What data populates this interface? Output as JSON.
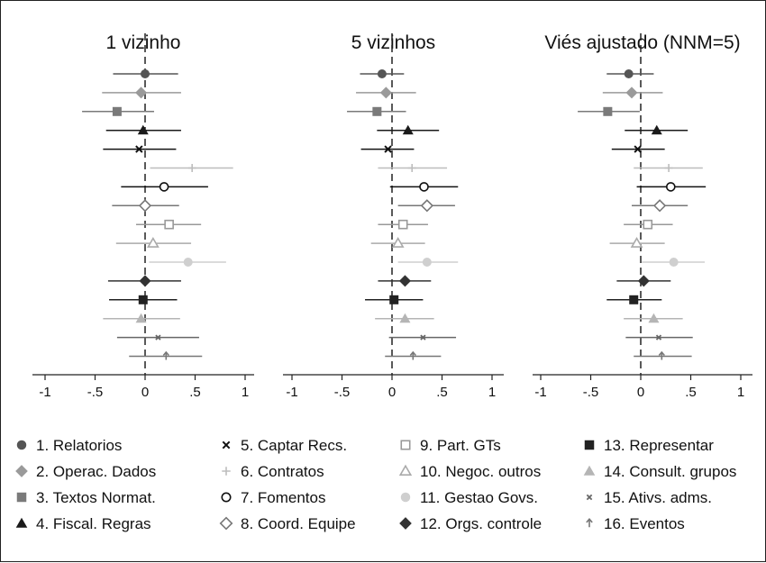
{
  "chart_data": [
    {
      "type": "scatter",
      "subtype": "coefficient-plot",
      "title": "1 vizinho",
      "xlim": [
        -1.1,
        1.1
      ],
      "xticks": [
        -1,
        -0.5,
        0,
        0.5,
        1
      ],
      "xtick_labels": [
        "-1",
        "-.5",
        "0",
        ".5",
        "1"
      ],
      "reference_line": 0,
      "points": [
        {
          "series": 1,
          "est": 0.0,
          "lo": -0.32,
          "hi": 0.33
        },
        {
          "series": 2,
          "est": -0.04,
          "lo": -0.43,
          "hi": 0.36
        },
        {
          "series": 3,
          "est": -0.28,
          "lo": -0.63,
          "hi": 0.09
        },
        {
          "series": 4,
          "est": -0.02,
          "lo": -0.39,
          "hi": 0.36
        },
        {
          "series": 5,
          "est": -0.06,
          "lo": -0.42,
          "hi": 0.31
        },
        {
          "series": 6,
          "est": 0.47,
          "lo": 0.05,
          "hi": 0.88
        },
        {
          "series": 7,
          "est": 0.19,
          "lo": -0.24,
          "hi": 0.63
        },
        {
          "series": 8,
          "est": 0.0,
          "lo": -0.33,
          "hi": 0.34
        },
        {
          "series": 9,
          "est": 0.24,
          "lo": -0.09,
          "hi": 0.56
        },
        {
          "series": 10,
          "est": 0.08,
          "lo": -0.29,
          "hi": 0.46
        },
        {
          "series": 11,
          "est": 0.43,
          "lo": 0.04,
          "hi": 0.81
        },
        {
          "series": 12,
          "est": 0.0,
          "lo": -0.37,
          "hi": 0.36
        },
        {
          "series": 13,
          "est": -0.02,
          "lo": -0.36,
          "hi": 0.32
        },
        {
          "series": 14,
          "est": -0.04,
          "lo": -0.42,
          "hi": 0.35
        },
        {
          "series": 15,
          "est": 0.13,
          "lo": -0.28,
          "hi": 0.54
        },
        {
          "series": 16,
          "est": 0.21,
          "lo": -0.16,
          "hi": 0.57
        }
      ]
    },
    {
      "type": "scatter",
      "subtype": "coefficient-plot",
      "title": "5 vizinhos",
      "xlim": [
        -1.1,
        1.1
      ],
      "xticks": [
        -1,
        -0.5,
        0,
        0.5,
        1
      ],
      "xtick_labels": [
        "-1",
        "-.5",
        "0",
        ".5",
        "1"
      ],
      "reference_line": 0,
      "points": [
        {
          "series": 1,
          "est": -0.1,
          "lo": -0.32,
          "hi": 0.12
        },
        {
          "series": 2,
          "est": -0.06,
          "lo": -0.36,
          "hi": 0.24
        },
        {
          "series": 3,
          "est": -0.15,
          "lo": -0.45,
          "hi": 0.14
        },
        {
          "series": 4,
          "est": 0.16,
          "lo": -0.15,
          "hi": 0.47
        },
        {
          "series": 5,
          "est": -0.04,
          "lo": -0.31,
          "hi": 0.22
        },
        {
          "series": 6,
          "est": 0.2,
          "lo": -0.14,
          "hi": 0.55
        },
        {
          "series": 7,
          "est": 0.32,
          "lo": -0.02,
          "hi": 0.66
        },
        {
          "series": 8,
          "est": 0.35,
          "lo": 0.06,
          "hi": 0.63
        },
        {
          "series": 9,
          "est": 0.11,
          "lo": -0.14,
          "hi": 0.36
        },
        {
          "series": 10,
          "est": 0.06,
          "lo": -0.21,
          "hi": 0.33
        },
        {
          "series": 11,
          "est": 0.35,
          "lo": 0.06,
          "hi": 0.66
        },
        {
          "series": 12,
          "est": 0.13,
          "lo": -0.14,
          "hi": 0.39
        },
        {
          "series": 13,
          "est": 0.02,
          "lo": -0.27,
          "hi": 0.31
        },
        {
          "series": 14,
          "est": 0.13,
          "lo": -0.17,
          "hi": 0.42
        },
        {
          "series": 15,
          "est": 0.31,
          "lo": -0.03,
          "hi": 0.64
        },
        {
          "series": 16,
          "est": 0.21,
          "lo": -0.07,
          "hi": 0.49
        }
      ]
    },
    {
      "type": "scatter",
      "subtype": "coefficient-plot",
      "title": "Viés ajustado (NNM=5)",
      "xlim": [
        -1.1,
        1.1
      ],
      "xticks": [
        -1,
        -0.5,
        0,
        0.5,
        1
      ],
      "xtick_labels": [
        "-1",
        "-.5",
        "0",
        ".5",
        "1"
      ],
      "reference_line": 0,
      "points": [
        {
          "series": 1,
          "est": -0.12,
          "lo": -0.34,
          "hi": 0.13
        },
        {
          "series": 2,
          "est": -0.09,
          "lo": -0.38,
          "hi": 0.22
        },
        {
          "series": 3,
          "est": -0.33,
          "lo": -0.63,
          "hi": -0.01
        },
        {
          "series": 4,
          "est": 0.16,
          "lo": -0.16,
          "hi": 0.47
        },
        {
          "series": 5,
          "est": -0.03,
          "lo": -0.29,
          "hi": 0.24
        },
        {
          "series": 6,
          "est": 0.28,
          "lo": -0.07,
          "hi": 0.62
        },
        {
          "series": 7,
          "est": 0.3,
          "lo": -0.04,
          "hi": 0.65
        },
        {
          "series": 8,
          "est": 0.19,
          "lo": -0.09,
          "hi": 0.47
        },
        {
          "series": 9,
          "est": 0.07,
          "lo": -0.17,
          "hi": 0.32
        },
        {
          "series": 10,
          "est": -0.04,
          "lo": -0.31,
          "hi": 0.24
        },
        {
          "series": 11,
          "est": 0.33,
          "lo": 0.01,
          "hi": 0.64
        },
        {
          "series": 12,
          "est": 0.03,
          "lo": -0.24,
          "hi": 0.3
        },
        {
          "series": 13,
          "est": -0.07,
          "lo": -0.34,
          "hi": 0.21
        },
        {
          "series": 14,
          "est": 0.13,
          "lo": -0.17,
          "hi": 0.42
        },
        {
          "series": 15,
          "est": 0.18,
          "lo": -0.15,
          "hi": 0.52
        },
        {
          "series": 16,
          "est": 0.21,
          "lo": -0.07,
          "hi": 0.51
        }
      ]
    }
  ],
  "legend": [
    {
      "id": 1,
      "label": "1. Relatorios",
      "marker": "circle",
      "color": "#555555"
    },
    {
      "id": 2,
      "label": "2. Operac. Dados",
      "marker": "diamond",
      "color": "#9a9a9a"
    },
    {
      "id": 3,
      "label": "3. Textos Normat.",
      "marker": "square",
      "color": "#7a7a7a"
    },
    {
      "id": 4,
      "label": "4. Fiscal. Regras",
      "marker": "triangle",
      "color": "#1a1a1a"
    },
    {
      "id": 5,
      "label": "5. Captar Recs.",
      "marker": "x",
      "color": "#111111"
    },
    {
      "id": 6,
      "label": "6. Contratos",
      "marker": "plus",
      "color": "#bdbdbd"
    },
    {
      "id": 7,
      "label": "7. Fomentos",
      "marker": "circle-open",
      "color": "#111111"
    },
    {
      "id": 8,
      "label": "8. Coord. Equipe",
      "marker": "diamond-open",
      "color": "#777777"
    },
    {
      "id": 9,
      "label": "9. Part. GTs",
      "marker": "square-open",
      "color": "#999999"
    },
    {
      "id": 10,
      "label": "10. Negoc. outros",
      "marker": "triangle-open",
      "color": "#aaaaaa"
    },
    {
      "id": 11,
      "label": "11. Gestao Govs.",
      "marker": "circle",
      "color": "#cfcfcf"
    },
    {
      "id": 12,
      "label": "12. Orgs. controle",
      "marker": "diamond",
      "color": "#333333"
    },
    {
      "id": 13,
      "label": "13. Representar",
      "marker": "square",
      "color": "#222222"
    },
    {
      "id": 14,
      "label": "14. Consult. grupos",
      "marker": "triangle",
      "color": "#b5b5b5"
    },
    {
      "id": 15,
      "label": "15. Ativs. adms.",
      "marker": "x-small",
      "color": "#666666"
    },
    {
      "id": 16,
      "label": "16. Eventos",
      "marker": "arrow-up",
      "color": "#777777"
    }
  ]
}
